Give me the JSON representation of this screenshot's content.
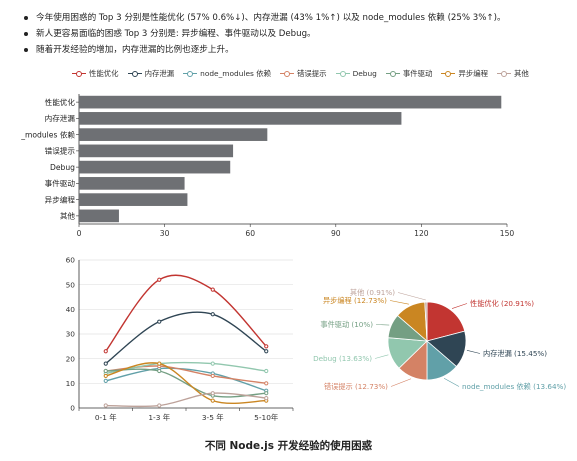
{
  "bullets": [
    "今年使用困惑的 Top 3 分别是性能优化 (57% 0.6%↓)、内存泄漏 (43% 1%↑) 以及 node_modules 依赖 (25% 3%↑)。",
    "新人更容易面临的困惑 Top 3 分别是: 异步编程、事件驱动以及 Debug。",
    "随着开发经验的增加，内存泄漏的比例也逐步上升。"
  ],
  "caption": "不同 Node.js 开发经验的使用困惑",
  "legend": [
    {
      "label": "性能优化",
      "color": "#c23531"
    },
    {
      "label": "内存泄漏",
      "color": "#2f4554"
    },
    {
      "label": "node_modules 依赖",
      "color": "#61a0a8"
    },
    {
      "label": "错误提示",
      "color": "#d48265"
    },
    {
      "label": "Debug",
      "color": "#91c7ae"
    },
    {
      "label": "事件驱动",
      "color": "#749f83"
    },
    {
      "label": "异步编程",
      "color": "#ca8622"
    },
    {
      "label": "其他",
      "color": "#bda29a"
    }
  ],
  "chart_data": [
    {
      "type": "bar",
      "orientation": "horizontal",
      "categories": [
        "性能优化",
        "内存泄漏",
        "node_modules 依赖",
        "错误提示",
        "Debug",
        "事件驱动",
        "异步编程",
        "其他"
      ],
      "category_labels": [
        "性能优化",
        "内存泄漏",
        "_modules 依赖",
        "错误提示",
        "Debug",
        "事件驱动",
        "异步编程",
        "其他"
      ],
      "values": [
        148,
        113,
        66,
        54,
        53,
        37,
        38,
        14
      ],
      "xlim": [
        0,
        150
      ],
      "xticks": [
        0,
        30,
        60,
        90,
        120,
        150
      ],
      "bar_color": "#6e7074",
      "grid": false
    },
    {
      "type": "line",
      "x": [
        "0-1 年",
        "1-3 年",
        "3-5 年",
        "5-10年"
      ],
      "ylim": [
        0,
        60
      ],
      "yticks": [
        0,
        10,
        20,
        30,
        40,
        50,
        60
      ],
      "grid": true,
      "series": [
        {
          "name": "性能优化",
          "color": "#c23531",
          "values": [
            23,
            52,
            48,
            25
          ]
        },
        {
          "name": "内存泄漏",
          "color": "#2f4554",
          "values": [
            18,
            35,
            38,
            23
          ]
        },
        {
          "name": "node_modules 依赖",
          "color": "#61a0a8",
          "values": [
            11,
            16,
            14,
            7
          ]
        },
        {
          "name": "错误提示",
          "color": "#d48265",
          "values": [
            15,
            17,
            13,
            10
          ]
        },
        {
          "name": "Debug",
          "color": "#91c7ae",
          "values": [
            14,
            18,
            18,
            15
          ]
        },
        {
          "name": "事件驱动",
          "color": "#749f83",
          "values": [
            15,
            15,
            5,
            6
          ]
        },
        {
          "name": "异步编程",
          "color": "#ca8622",
          "values": [
            13,
            18,
            3,
            3
          ]
        },
        {
          "name": "其他",
          "color": "#bda29a",
          "values": [
            1,
            1,
            6,
            4
          ]
        }
      ]
    },
    {
      "type": "pie",
      "labels": [
        "性能优化",
        "内存泄漏",
        "node_modules 依赖",
        "错误提示",
        "Debug",
        "事件驱动",
        "异步编程",
        "其他"
      ],
      "values": [
        20.91,
        15.45,
        13.64,
        12.73,
        13.63,
        10,
        12.73,
        0.91
      ],
      "display": [
        "性能优化 (20.91%)",
        "内存泄漏 (15.45%)",
        "node_modules 依赖 (13.64%)",
        "错误提示 (12.73%)",
        "Debug (13.63%)",
        "事件驱动 (10%)",
        "异步编程 (12.73%)",
        "其他 (0.91%)"
      ],
      "colors": [
        "#c23531",
        "#2f4554",
        "#61a0a8",
        "#d48265",
        "#91c7ae",
        "#749f83",
        "#ca8622",
        "#bda29a"
      ]
    }
  ]
}
